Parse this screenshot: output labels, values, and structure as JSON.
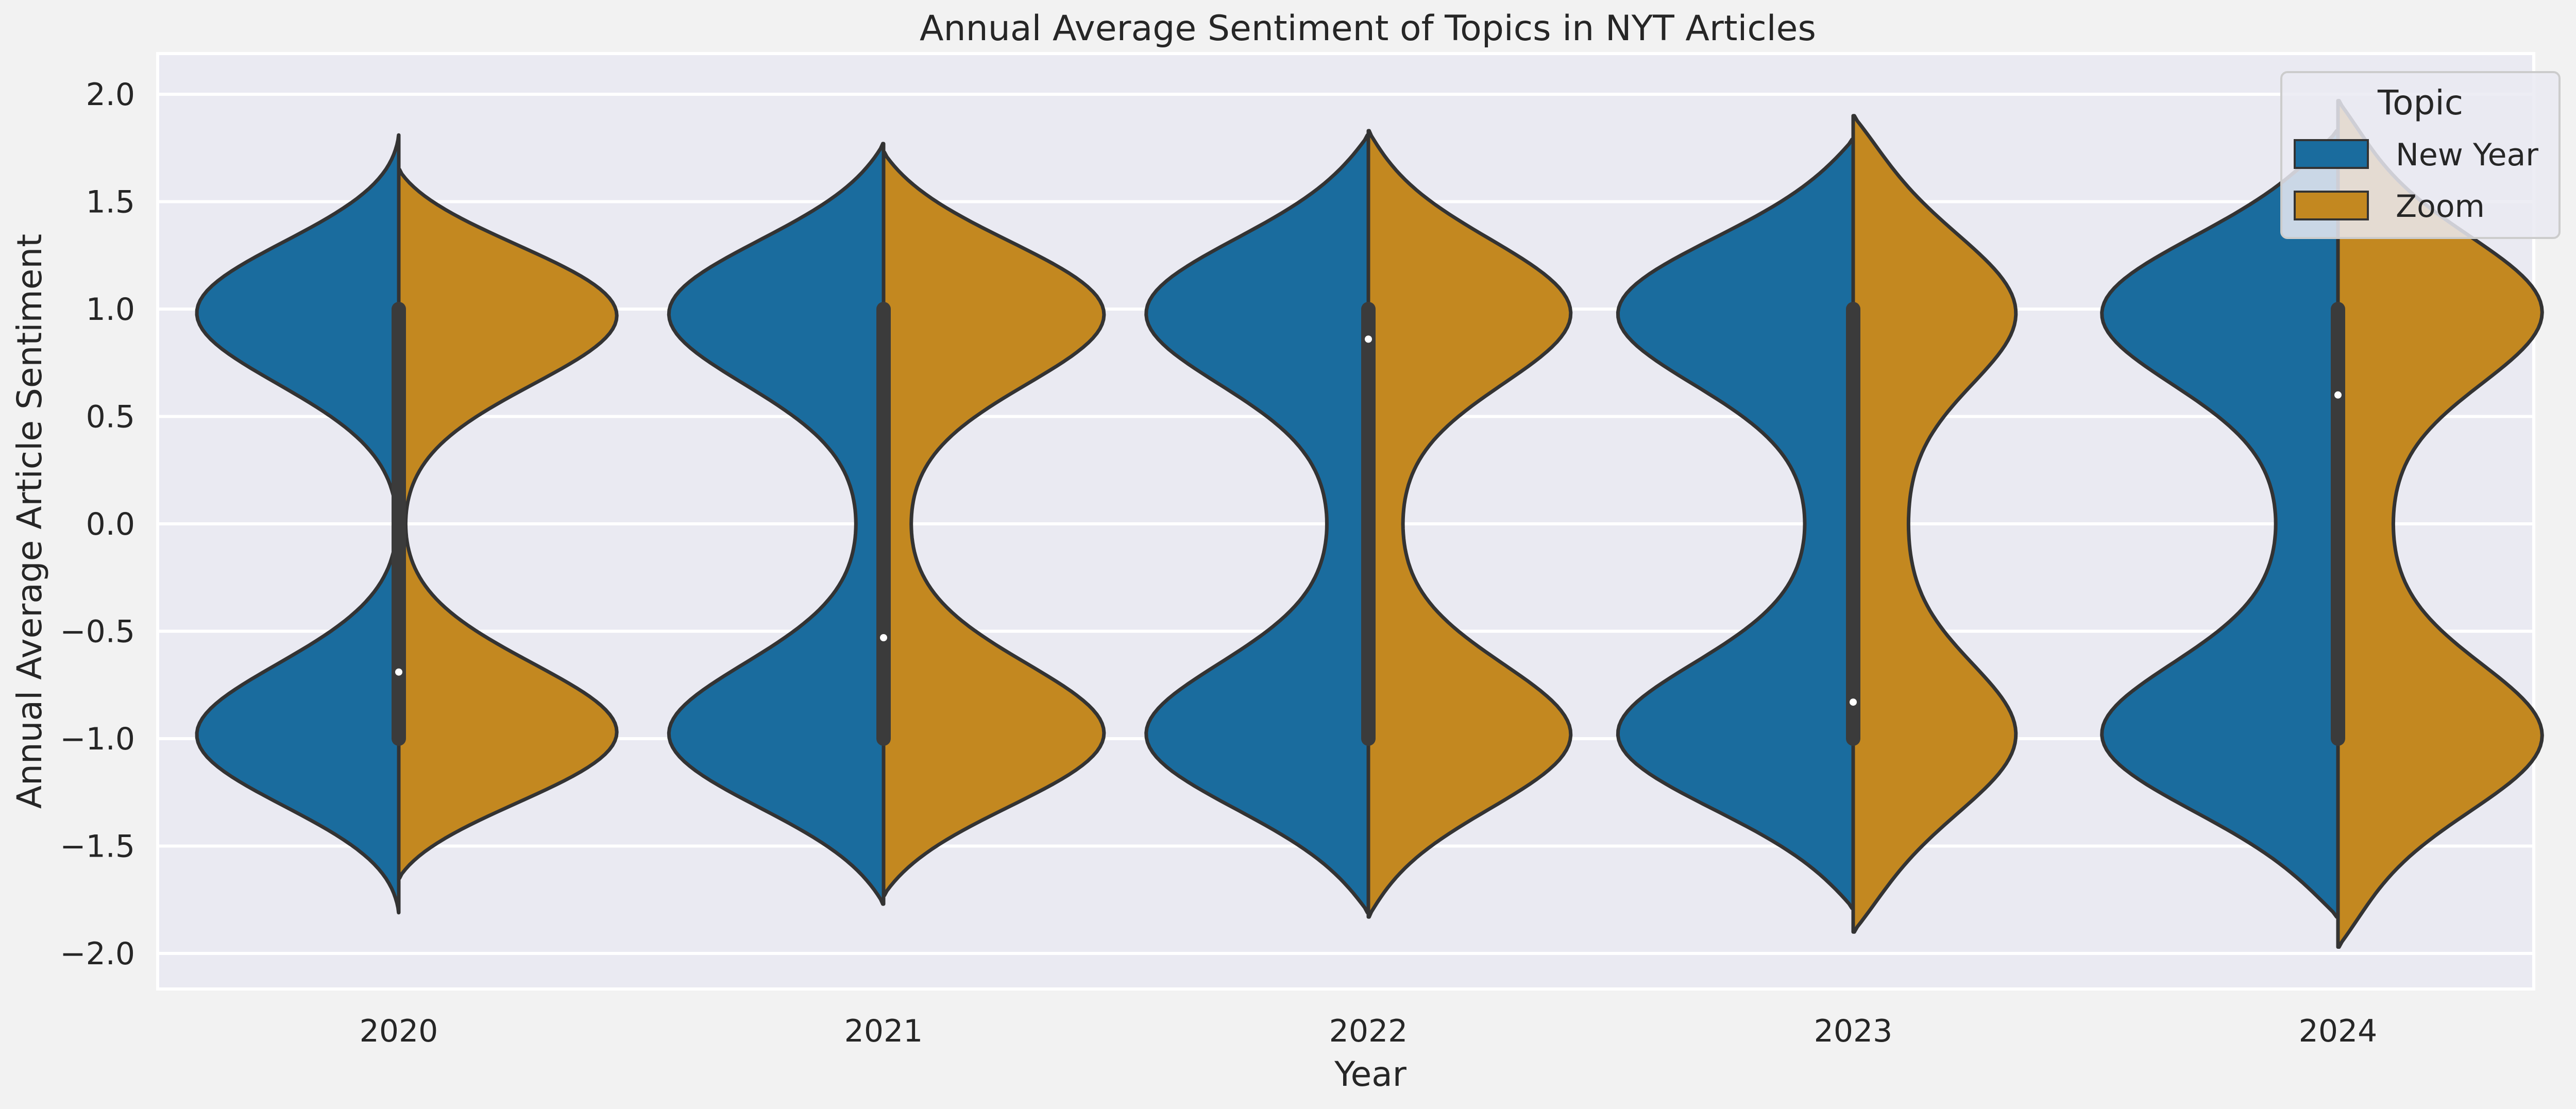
{
  "chart_data": {
    "type": "violin",
    "title": "Annual Average Sentiment of Topics in NYT Articles",
    "xlabel": "Year",
    "ylabel": "Annual Average Article Sentiment",
    "ylim": [
      -2.17,
      2.17
    ],
    "yticks": [
      2.0,
      1.5,
      1.0,
      0.5,
      0.0,
      -0.5,
      -1.0,
      -1.5,
      -2.0
    ],
    "ytick_labels": [
      "2.0",
      "1.5",
      "1.0",
      "0.5",
      "0.0",
      "−0.5",
      "−1.0",
      "−1.5",
      "−2.0"
    ],
    "categories": [
      "2020",
      "2021",
      "2022",
      "2023",
      "2024"
    ],
    "split": true,
    "grid": true,
    "legend": {
      "title": "Topic",
      "placement": "top-right"
    },
    "series": [
      {
        "name": "New Year",
        "color": "#1a6c9e",
        "side": "left",
        "extent": [
          [
            -1.81,
            1.81
          ],
          [
            -1.77,
            1.77
          ],
          [
            -1.81,
            1.81
          ],
          [
            -1.79,
            1.79
          ],
          [
            -1.83,
            1.83
          ]
        ],
        "peak_width": [
          0.3,
          0.32,
          0.33,
          0.35,
          0.35
        ],
        "waist_width": [
          0.003,
          0.04,
          0.06,
          0.07,
          0.09
        ]
      },
      {
        "name": "Zoom",
        "color": "#c38820",
        "side": "right",
        "extent": [
          [
            -1.65,
            1.65
          ],
          [
            -1.73,
            1.73
          ],
          [
            -1.83,
            1.83
          ],
          [
            -1.9,
            1.9
          ],
          [
            -1.97,
            1.97
          ]
        ],
        "peak_width": [
          0.33,
          0.33,
          0.3,
          0.24,
          0.3
        ],
        "waist_width": [
          0.01,
          0.04,
          0.05,
          0.08,
          0.08
        ]
      }
    ],
    "inner_box": {
      "q1": [
        -1.0,
        -1.0,
        -1.0,
        -1.0,
        -1.0
      ],
      "q3": [
        1.0,
        1.0,
        1.0,
        1.0,
        1.0
      ],
      "median": [
        -0.69,
        -0.53,
        0.86,
        -0.83,
        0.6
      ]
    }
  }
}
